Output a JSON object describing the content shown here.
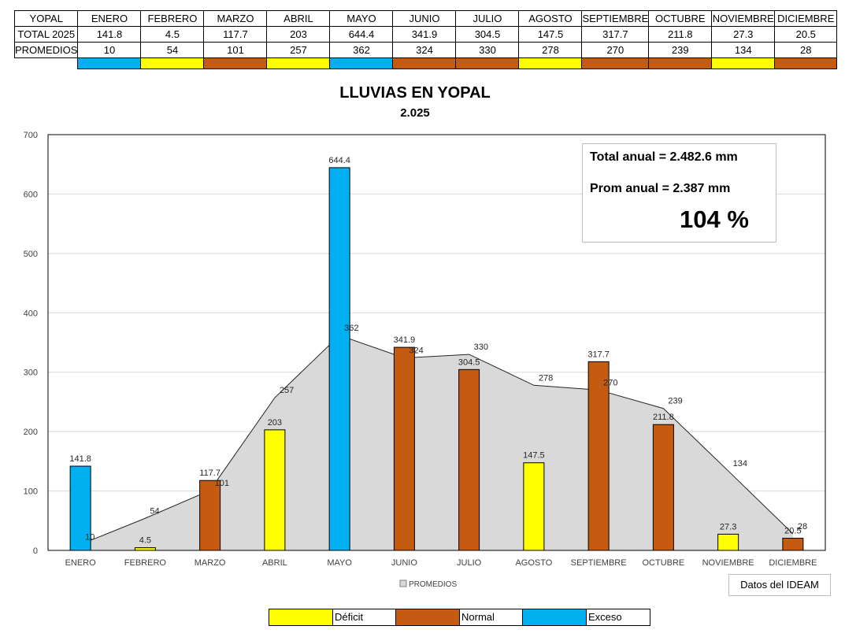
{
  "table": {
    "header": [
      "YOPAL",
      "ENERO",
      "FEBRERO",
      "MARZO",
      "ABRIL",
      "MAYO",
      "JUNIO",
      "JULIO",
      "AGOSTO",
      "SEPTIEMBRE",
      "OCTUBRE",
      "NOVIEMBRE",
      "DICIEMBRE"
    ],
    "total_row": [
      "TOTAL 2025",
      "141.8",
      "4.5",
      "117.7",
      "203",
      "644.4",
      "341.9",
      "304.5",
      "147.5",
      "317.7",
      "211.8",
      "27.3",
      "20.5"
    ],
    "prom_row": [
      "PROMEDIOS",
      "10",
      "54",
      "101",
      "257",
      "362",
      "324",
      "330",
      "278",
      "270",
      "239",
      "134",
      "28"
    ],
    "status_colors": [
      "#00b0f0",
      "#ffff00",
      "#c55a11",
      "#ffff00",
      "#00b0f0",
      "#c55a11",
      "#c55a11",
      "#ffff00",
      "#c55a11",
      "#c55a11",
      "#ffff00",
      "#c55a11"
    ]
  },
  "chart_data": {
    "type": "bar",
    "title": "LLUVIAS EN YOPAL",
    "subtitle": "2.025",
    "categories": [
      "ENERO",
      "FEBRERO",
      "MARZO",
      "ABRIL",
      "MAYO",
      "JUNIO",
      "JULIO",
      "AGOSTO",
      "SEPTIEMBRE",
      "OCTUBRE",
      "NOVIEMBRE",
      "DICIEMBRE"
    ],
    "series": [
      {
        "name": "TOTAL 2025",
        "kind": "bar",
        "values": [
          141.8,
          4.5,
          117.7,
          203,
          644.4,
          341.9,
          304.5,
          147.5,
          317.7,
          211.8,
          27.3,
          20.5
        ],
        "colors": [
          "#00b0f0",
          "#ffff00",
          "#c55a11",
          "#ffff00",
          "#00b0f0",
          "#c55a11",
          "#c55a11",
          "#ffff00",
          "#c55a11",
          "#c55a11",
          "#ffff00",
          "#c55a11"
        ]
      },
      {
        "name": "PROMEDIOS",
        "kind": "area",
        "values": [
          10,
          54,
          101,
          257,
          362,
          324,
          330,
          278,
          270,
          239,
          134,
          28
        ],
        "color": "#d9d9d9"
      }
    ],
    "yticks": [
      0,
      100,
      200,
      300,
      400,
      500,
      600,
      700
    ],
    "ylim": [
      0,
      700
    ],
    "legend": "PROMEDIOS",
    "grid": true
  },
  "summary": {
    "total_label": "Total anual =  2.482.6 mm",
    "prom_label": "Prom anual =  2.387 mm",
    "percent": "104 %"
  },
  "source": "Datos del IDEAM",
  "status_legend": [
    {
      "label": "Déficit",
      "color": "#ffff00"
    },
    {
      "label": "Normal",
      "color": "#c55a11"
    },
    {
      "label": "Exceso",
      "color": "#00b0f0"
    }
  ]
}
